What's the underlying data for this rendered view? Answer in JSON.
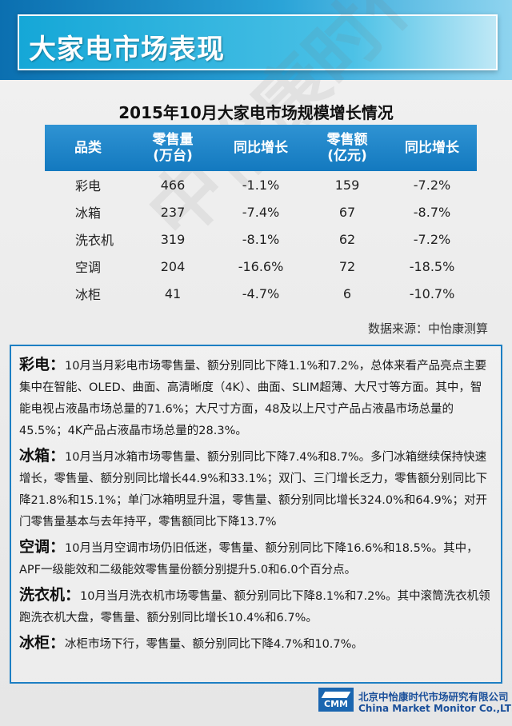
{
  "header": {
    "title": "大家电市场表现"
  },
  "watermark": "中怡康时代",
  "table": {
    "title": "2015年10月大家电市场规模增长情况",
    "headers": [
      "品类",
      "零售量\n(万台)",
      "同比增长",
      "零售额\n(亿元)",
      "同比增长"
    ],
    "rows": [
      [
        "彩电",
        "466",
        "-1.1%",
        "159",
        "-7.2%"
      ],
      [
        "冰箱",
        "237",
        "-7.4%",
        "67",
        "-8.7%"
      ],
      [
        "洗衣机",
        "319",
        "-8.1%",
        "62",
        "-7.2%"
      ],
      [
        "空调",
        "204",
        "-16.6%",
        "72",
        "-18.5%"
      ],
      [
        "冰柜",
        "41",
        "-4.7%",
        "6",
        "-10.7%"
      ]
    ],
    "source": "数据来源：中怡康测算"
  },
  "paragraphs": [
    {
      "lead": "彩电：",
      "text": "10月当月彩电市场零售量、额分别同比下降1.1%和7.2%，总体来看产品亮点主要集中在智能、OLED、曲面、高清晰度（4K）、曲面、SLIM超薄、大尺寸等方面。其中，智能电视占液晶市场总量的71.6%；大尺寸方面，48及以上尺寸产品占液晶市场总量的45.5%；4K产品占液晶市场总量的28.3%。"
    },
    {
      "lead": "冰箱：",
      "text": "10月当月冰箱市场零售量、额分别同比下降7.4%和8.7%。多门冰箱继续保持快速增长，零售量、额分别同比增长44.9%和33.1%；双门、三门增长乏力，零售额分别同比下降21.8%和15.1%；单门冰箱明显升温，零售量、额分别同比增长324.0%和64.9%；对开门零售量基本与去年持平，零售额同比下降13.7%"
    },
    {
      "lead": "空调：",
      "text": "10月当月空调市场仍旧低迷，零售量、额分别同比下降16.6%和18.5%。其中，APF一级能效和二级能效零售量份额分别提升5.0和6.0个百分点。"
    },
    {
      "lead": "洗衣机：",
      "text": "10月当月洗衣机市场零售量、额分别同比下降8.1%和7.2%。其中滚筒洗衣机领跑洗衣机大盘，零售量、额分别同比增长10.4%和6.7%。"
    },
    {
      "lead": "冰柜：",
      "text": "冰柜市场下行，零售量、额分别同比下降4.7%和10.7%。"
    }
  ],
  "footer": {
    "logo": "CMM",
    "company_cn": "北京中怡康时代市场研究有限公司",
    "company_en": "China Market Monitor Co.,LTD"
  }
}
